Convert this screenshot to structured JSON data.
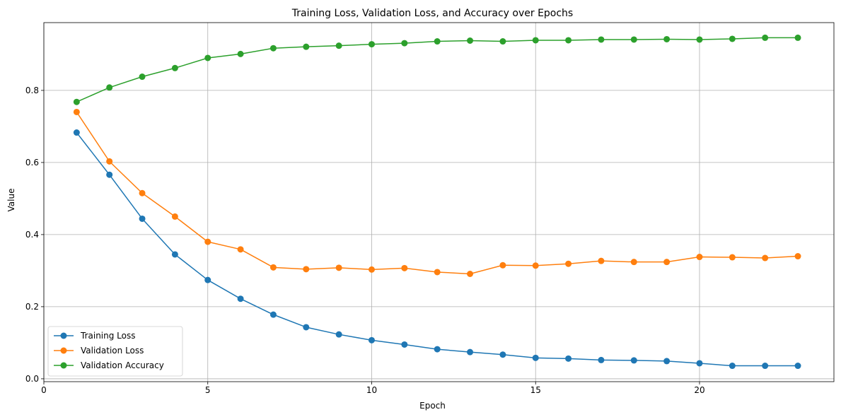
{
  "chart_data": {
    "type": "line",
    "title": "Training Loss, Validation Loss, and Accuracy over Epochs",
    "xlabel": "Epoch",
    "ylabel": "Value",
    "xlim": [
      0,
      24.1
    ],
    "ylim": [
      -0.008,
      0.988
    ],
    "xticks": [
      0,
      5,
      10,
      15,
      20
    ],
    "yticks": [
      0.0,
      0.2,
      0.4,
      0.6,
      0.8
    ],
    "grid": true,
    "legend_position": "lower-left",
    "marker": "circle",
    "x": [
      1,
      2,
      3,
      4,
      5,
      6,
      7,
      8,
      9,
      10,
      11,
      12,
      13,
      14,
      15,
      16,
      17,
      18,
      19,
      20,
      21,
      22,
      23
    ],
    "series": [
      {
        "name": "Training Loss",
        "color": "#1f77b4",
        "values": [
          0.683,
          0.566,
          0.444,
          0.345,
          0.274,
          0.222,
          0.178,
          0.143,
          0.123,
          0.107,
          0.095,
          0.082,
          0.074,
          0.067,
          0.058,
          0.056,
          0.052,
          0.051,
          0.049,
          0.043,
          0.036,
          0.036,
          0.036
        ]
      },
      {
        "name": "Validation Loss",
        "color": "#ff7f0e",
        "values": [
          0.74,
          0.603,
          0.515,
          0.45,
          0.38,
          0.359,
          0.309,
          0.304,
          0.308,
          0.303,
          0.307,
          0.296,
          0.291,
          0.315,
          0.314,
          0.319,
          0.327,
          0.324,
          0.324,
          0.338,
          0.337,
          0.335,
          0.34
        ]
      },
      {
        "name": "Validation Accuracy",
        "color": "#2ca02c",
        "values": [
          0.768,
          0.808,
          0.838,
          0.862,
          0.89,
          0.901,
          0.917,
          0.921,
          0.924,
          0.928,
          0.931,
          0.936,
          0.938,
          0.936,
          0.939,
          0.939,
          0.941,
          0.941,
          0.942,
          0.941,
          0.943,
          0.946,
          0.946
        ]
      }
    ]
  }
}
